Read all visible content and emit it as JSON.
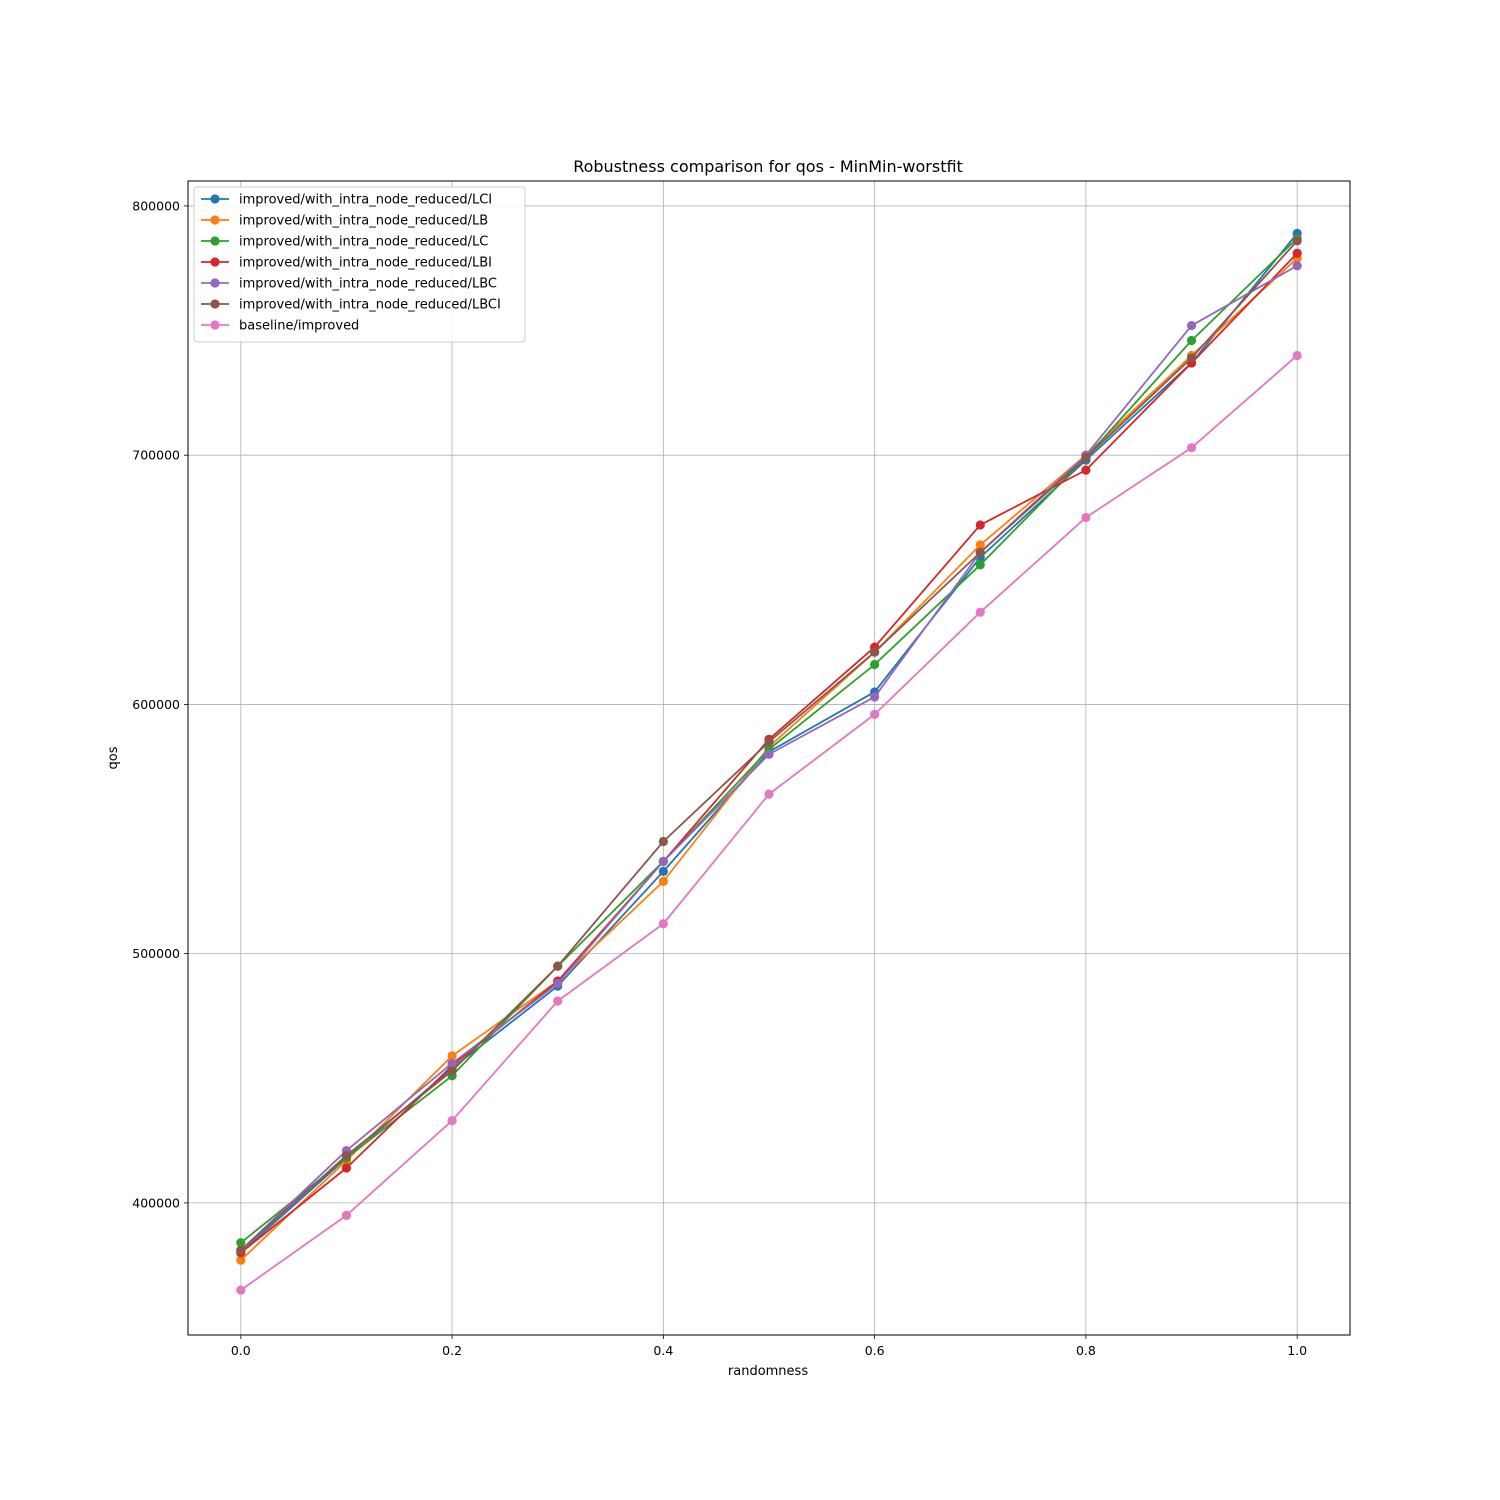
{
  "chart_data": {
    "type": "line",
    "title": "Robustness comparison for qos - MinMin-worstfit",
    "xlabel": "randomness",
    "ylabel": "qos",
    "x": [
      0.0,
      0.1,
      0.2,
      0.3,
      0.4,
      0.5,
      0.6,
      0.7,
      0.8,
      0.9,
      1.0
    ],
    "xlim": [
      -0.05,
      1.05
    ],
    "ylim": [
      347000,
      810000
    ],
    "xticks": [
      0.0,
      0.2,
      0.4,
      0.6,
      0.8,
      1.0
    ],
    "xtick_labels": [
      "0.0",
      "0.2",
      "0.4",
      "0.6",
      "0.8",
      "1.0"
    ],
    "yticks": [
      400000,
      500000,
      600000,
      700000,
      800000
    ],
    "ytick_labels": [
      "400000",
      "500000",
      "600000",
      "700000",
      "800000"
    ],
    "grid": true,
    "legend_position": "upper-left",
    "series": [
      {
        "name": "improved/with_intra_node_reduced/LCI",
        "color": "#1f77b4",
        "values": [
          380000,
          418000,
          454000,
          487000,
          533000,
          581000,
          605000,
          659000,
          698000,
          737000,
          789000
        ]
      },
      {
        "name": "improved/with_intra_node_reduced/LB",
        "color": "#ff7f0e",
        "values": [
          377000,
          417000,
          459000,
          489000,
          529000,
          583000,
          621000,
          664000,
          700000,
          740000,
          779000
        ]
      },
      {
        "name": "improved/with_intra_node_reduced/LC",
        "color": "#2ca02c",
        "values": [
          384000,
          418000,
          451000,
          495000,
          537000,
          582000,
          616000,
          656000,
          699000,
          746000,
          787000
        ]
      },
      {
        "name": "improved/with_intra_node_reduced/LBI",
        "color": "#d62728",
        "values": [
          380000,
          414000,
          455000,
          489000,
          537000,
          586000,
          623000,
          672000,
          694000,
          737000,
          781000
        ]
      },
      {
        "name": "improved/with_intra_node_reduced/LBC",
        "color": "#9467bd",
        "values": [
          381000,
          421000,
          456000,
          488000,
          537000,
          580000,
          603000,
          661000,
          700000,
          752000,
          776000
        ]
      },
      {
        "name": "improved/with_intra_node_reduced/LBCI",
        "color": "#8c564b",
        "values": [
          381000,
          419000,
          453000,
          495000,
          545000,
          585000,
          621000,
          661000,
          699000,
          739000,
          786000
        ]
      },
      {
        "name": "baseline/improved",
        "color": "#e377c2",
        "values": [
          365000,
          395000,
          433000,
          481000,
          512000,
          564000,
          596000,
          637000,
          675000,
          703000,
          740000
        ]
      }
    ]
  }
}
